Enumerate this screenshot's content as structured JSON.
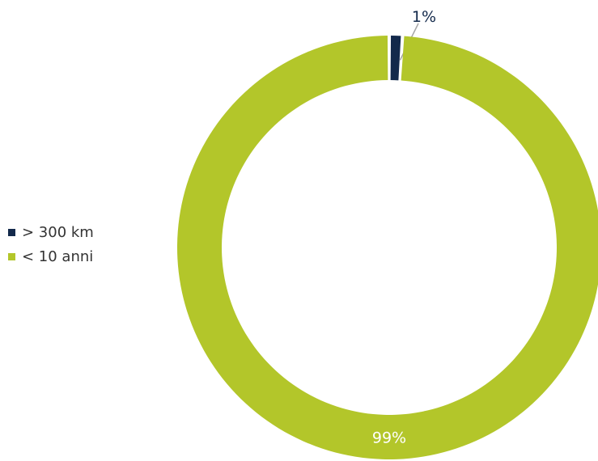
{
  "chart_data": {
    "type": "pie",
    "donut": true,
    "title": "",
    "categories": [
      "> 300 km",
      "< 10 anni"
    ],
    "values": [
      1,
      99
    ],
    "labels": [
      "1%",
      "99%"
    ],
    "colors": [
      "#13294b",
      "#b3c62a"
    ],
    "label_colors": [
      "#13294b",
      "#ffffff"
    ],
    "legend_position": "left",
    "start_angle_deg": 0,
    "direction": "clockwise"
  }
}
